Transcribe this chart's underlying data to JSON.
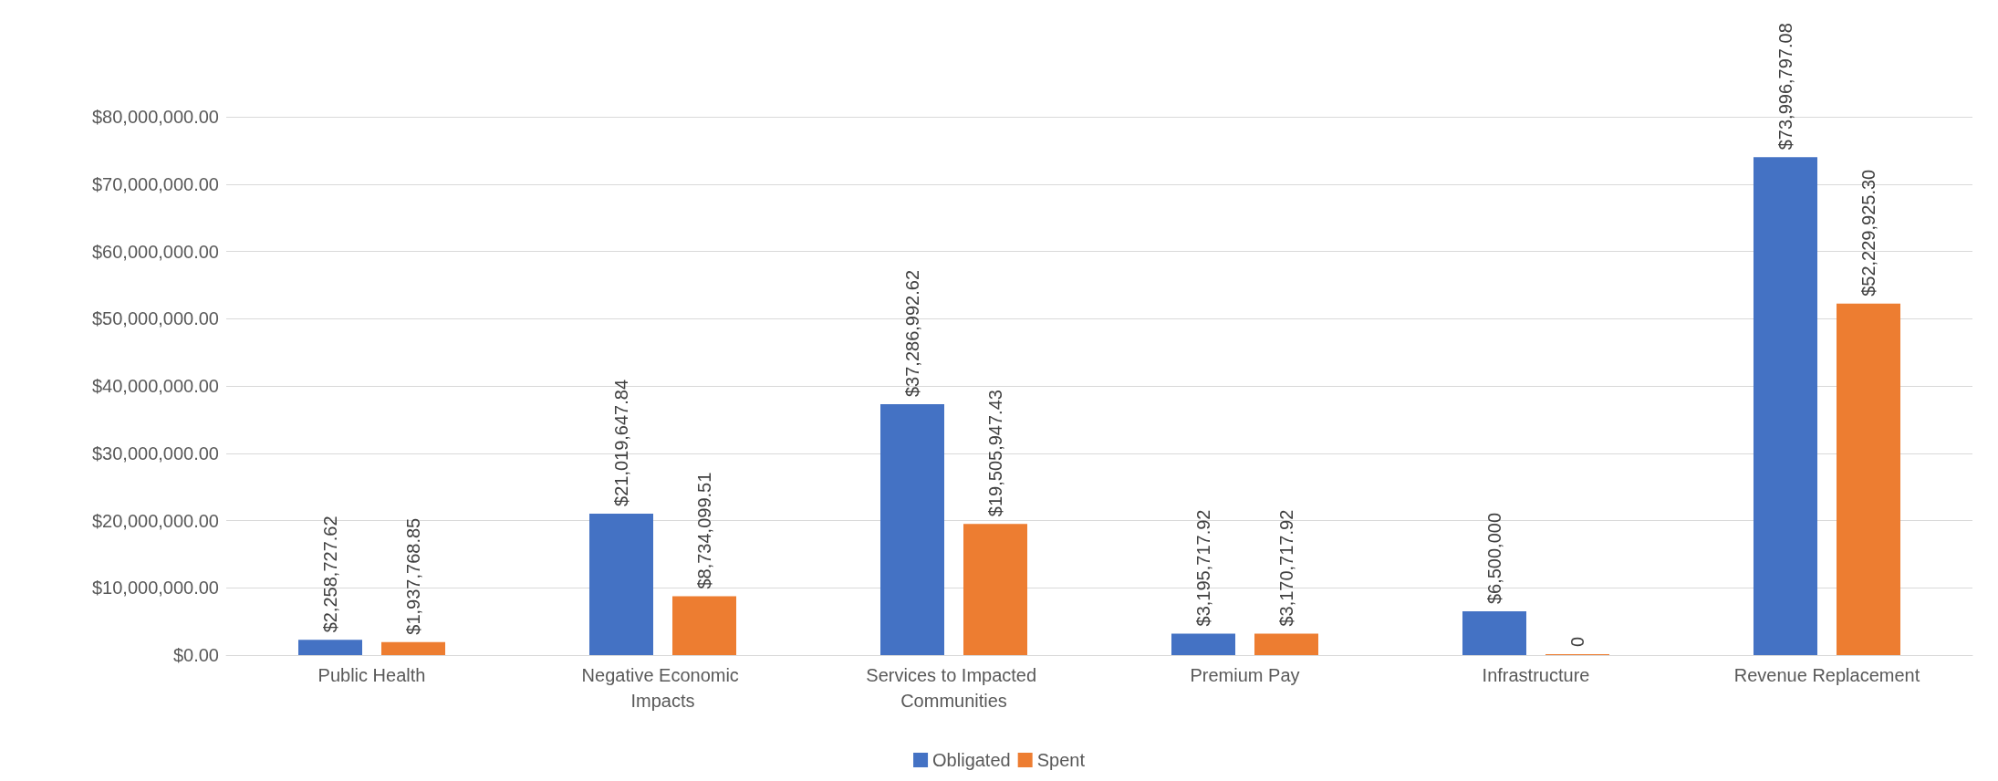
{
  "chart_data": {
    "type": "bar",
    "categories": [
      "Public Health",
      "Negative Economic Impacts",
      "Services to Impacted Communities",
      "Premium Pay",
      "Infrastructure",
      "Revenue Replacement"
    ],
    "series": [
      {
        "name": "Obligated",
        "color": "#4472c4",
        "values": [
          2258727.62,
          21019647.84,
          37286992.62,
          3195717.92,
          6500000,
          73996797.08
        ],
        "value_labels": [
          "$2,258,727.62",
          "$21,019,647.84",
          "$37,286,992.62",
          "$3,195,717.92",
          "$6,500,000",
          "$73,996,797.08"
        ]
      },
      {
        "name": "Spent",
        "color": "#ed7d31",
        "values": [
          1937768.85,
          8734099.51,
          19505947.43,
          3170717.92,
          0,
          52229925.3
        ],
        "value_labels": [
          "$1,937,768.85",
          "$8,734,099.51",
          "$19,505,947.43",
          "$3,170,717.92",
          "0",
          "$52,229,925.30"
        ]
      }
    ],
    "ylim": [
      0,
      80000000
    ],
    "yticks": [
      {
        "value": 0,
        "label": "$0.00"
      },
      {
        "value": 10000000,
        "label": "$10,000,000.00"
      },
      {
        "value": 20000000,
        "label": "$20,000,000.00"
      },
      {
        "value": 30000000,
        "label": "$30,000,000.00"
      },
      {
        "value": 40000000,
        "label": "$40,000,000.00"
      },
      {
        "value": 50000000,
        "label": "$50,000,000.00"
      },
      {
        "value": 60000000,
        "label": "$60,000,000.00"
      },
      {
        "value": 70000000,
        "label": "$70,000,000.00"
      },
      {
        "value": 80000000,
        "label": "$80,000,000.00"
      }
    ],
    "grid": "y",
    "legend": "bottom"
  }
}
